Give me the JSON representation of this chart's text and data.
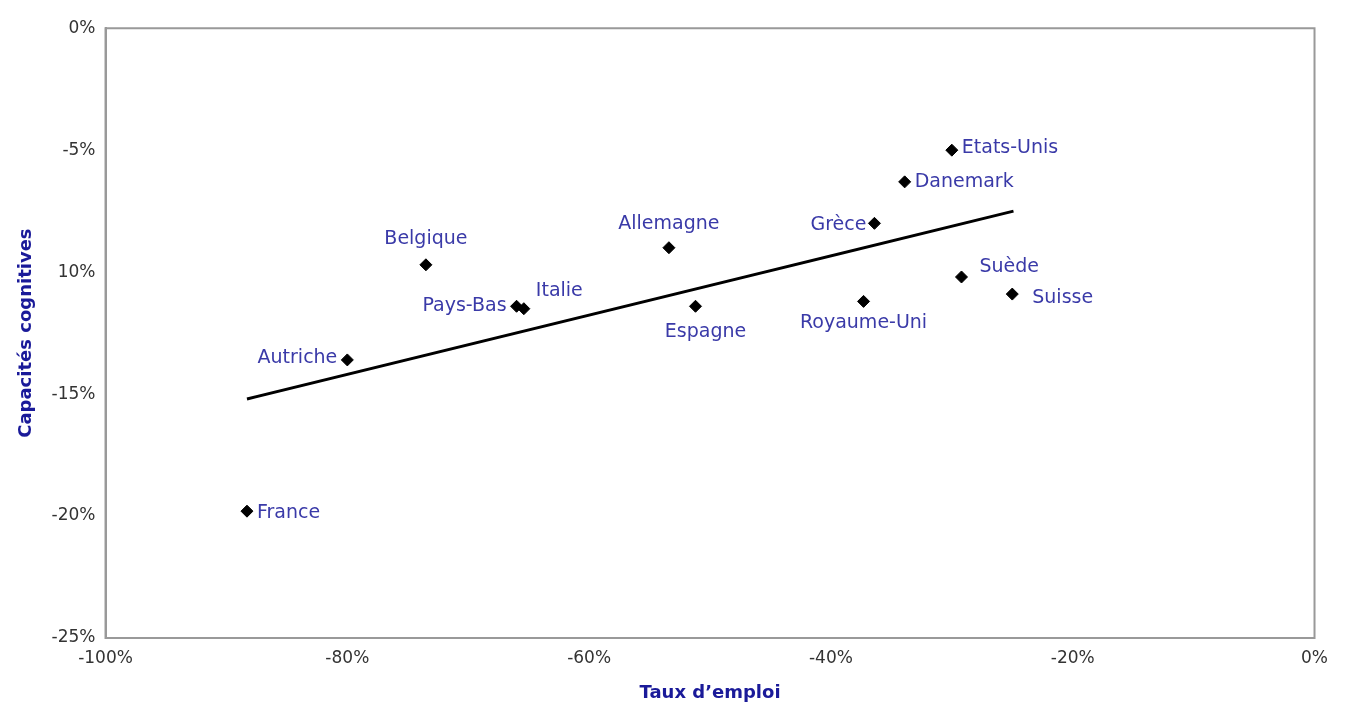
{
  "chart_data": {
    "type": "scatter",
    "xlabel": "Taux d’emploi",
    "ylabel": "Capacités cognitives",
    "xlim": [
      -100,
      0
    ],
    "ylim": [
      -25,
      0
    ],
    "xticks": [
      {
        "value": -100,
        "label": "-100%"
      },
      {
        "value": -80,
        "label": "-80%"
      },
      {
        "value": -60,
        "label": "-60%"
      },
      {
        "value": -40,
        "label": "-40%"
      },
      {
        "value": -20,
        "label": "-20%"
      },
      {
        "value": 0,
        "label": "0%"
      }
    ],
    "yticks": [
      {
        "value": 0,
        "label": "0%"
      },
      {
        "value": -5,
        "label": "-5%"
      },
      {
        "value": -10,
        "label": "10%"
      },
      {
        "value": -15,
        "label": "-15%"
      },
      {
        "value": -20,
        "label": "-20%"
      },
      {
        "value": -25,
        "label": "-25%"
      }
    ],
    "grid": false,
    "legend": false,
    "series": [
      {
        "marker": "diamond",
        "color": "#000000",
        "x": [
          -88.3,
          -80.0,
          -73.5,
          -66.0,
          -65.4,
          -53.4,
          -51.2,
          -36.4,
          -33.9,
          -30.0,
          -37.3,
          -29.2,
          -25.0
        ],
        "values": [
          -19.8,
          -13.6,
          -9.7,
          -11.4,
          -11.5,
          -9.0,
          -11.4,
          -8.0,
          -6.3,
          -5.0,
          -11.2,
          -10.2,
          -10.9
        ]
      },
      {
        "type": "line",
        "color": "#000000",
        "x": [
          -88.3,
          -24.9
        ],
        "values": [
          -15.2,
          -7.5
        ]
      }
    ],
    "annotations": [
      {
        "text": "France",
        "x": -88.3,
        "y": -19.8
      },
      {
        "text": "Autriche",
        "x": -80.0,
        "y": -13.6
      },
      {
        "text": "Belgique",
        "x": -73.5,
        "y": -9.7
      },
      {
        "text": "Pays-Bas",
        "x": -66.0,
        "y": -11.4
      },
      {
        "text": "Italie",
        "x": -65.4,
        "y": -11.5
      },
      {
        "text": "Allemagne",
        "x": -53.4,
        "y": -9.0
      },
      {
        "text": "Espagne",
        "x": -51.2,
        "y": -11.4
      },
      {
        "text": "Grèce",
        "x": -36.4,
        "y": -8.0
      },
      {
        "text": "Danemark",
        "x": -33.9,
        "y": -6.3
      },
      {
        "text": "Etats-Unis",
        "x": -30.0,
        "y": -5.0
      },
      {
        "text": "Royaume-Uni",
        "x": -37.3,
        "y": -11.2
      },
      {
        "text": "Suède",
        "x": -29.2,
        "y": -10.2
      },
      {
        "text": "Suisse",
        "x": -25.0,
        "y": -10.9
      }
    ]
  }
}
